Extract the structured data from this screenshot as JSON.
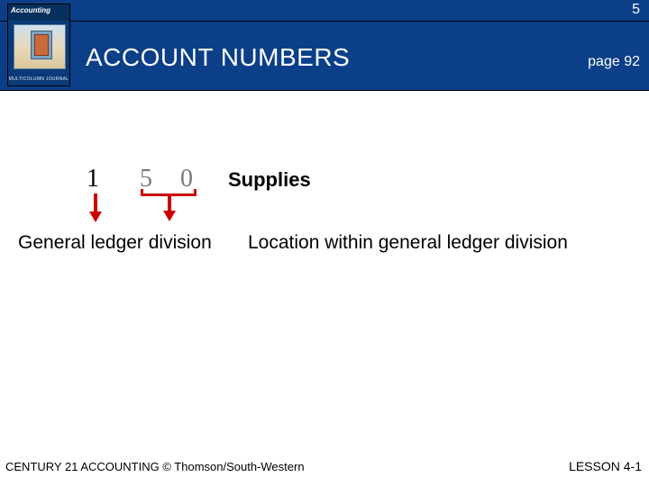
{
  "colors": {
    "header_bg": "#0b3f87",
    "accent_red": "#cc0000",
    "muted_digit": "#7b7b7b",
    "text": "#000000",
    "white": "#ffffff"
  },
  "topbar": {
    "slide_number": "5"
  },
  "header": {
    "title": "ACCOUNT NUMBERS",
    "page_ref": "page 92"
  },
  "book": {
    "brand": "Accounting",
    "subtitle": "MULTICOLUMN JOURNAL"
  },
  "diagram": {
    "digits": {
      "d1": "1",
      "d5": "5",
      "d0": "0"
    },
    "account_name": "Supplies",
    "label_left": "General ledger division",
    "label_right": "Location within general ledger division"
  },
  "footer": {
    "copyright": "CENTURY 21 ACCOUNTING © Thomson/South-Western",
    "lesson": "LESSON  4-1"
  }
}
